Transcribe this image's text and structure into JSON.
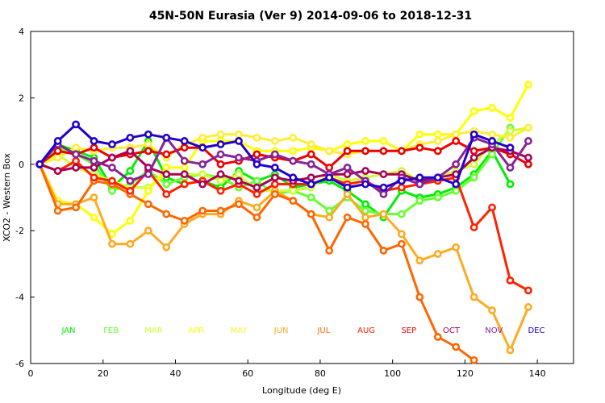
{
  "chart_data": {
    "type": "line",
    "title": "45N-50N Eurasia (Ver 9)   2014-09-06 to 2018-12-31",
    "xlabel": "Longitude (deg E)",
    "ylabel": "XCO2 - Western Box",
    "xlim": [
      0,
      150
    ],
    "ylim": [
      -6,
      4
    ],
    "xticks": [
      "0",
      "20",
      "40",
      "60",
      "80",
      "100",
      "120",
      "140"
    ],
    "yticks": [
      "-6",
      "-4",
      "-2",
      "0",
      "2",
      "4"
    ],
    "series": [
      {
        "name": "JAN",
        "color": "#00ee00",
        "x": [
          2.5,
          7.5,
          12.5,
          17.5,
          22.5,
          27.5,
          32.5,
          37.5,
          42.5,
          47.5,
          52.5,
          57.5,
          62.5,
          67.5,
          72.5,
          77.5,
          82.5,
          87.5,
          92.5,
          97.5,
          102.5,
          107.5,
          112.5,
          117.5,
          122.5,
          127.5,
          132.5
        ],
        "values": [
          0.0,
          0.6,
          0.4,
          0.2,
          -0.7,
          -0.2,
          0.7,
          -0.4,
          -0.6,
          -0.5,
          -0.7,
          -0.2,
          -0.5,
          -0.3,
          -0.7,
          -0.6,
          -0.5,
          -0.8,
          -1.2,
          -1.6,
          -0.8,
          -1.0,
          -0.9,
          -0.7,
          -0.3,
          0.4,
          -0.6
        ]
      },
      {
        "name": "FEB",
        "color": "#66ff33",
        "x": [
          2.5,
          7.5,
          12.5,
          17.5,
          22.5,
          27.5,
          32.5,
          37.5,
          42.5,
          47.5,
          52.5,
          57.5,
          62.5,
          67.5,
          72.5,
          77.5,
          82.5,
          87.5,
          92.5,
          97.5,
          102.5,
          107.5,
          112.5,
          117.5,
          122.5,
          127.5,
          132.5
        ],
        "values": [
          0.0,
          0.5,
          0.3,
          0.0,
          -0.8,
          -0.6,
          -0.2,
          -0.6,
          -0.4,
          -0.3,
          -0.4,
          -0.7,
          -0.5,
          -0.9,
          -0.8,
          -1.0,
          -1.4,
          -1.0,
          -1.4,
          -1.5,
          -1.5,
          -1.1,
          -1.0,
          -0.8,
          -0.4,
          0.3,
          1.1
        ]
      },
      {
        "name": "MAR",
        "color": "#ccff33",
        "x": [
          2.5,
          7.5,
          12.5,
          17.5,
          22.5,
          27.5,
          32.5,
          37.5,
          42.5,
          47.5,
          52.5,
          57.5,
          62.5,
          67.5,
          72.5,
          77.5,
          82.5,
          87.5,
          92.5,
          97.5,
          102.5,
          107.5,
          112.5,
          117.5,
          122.5,
          127.5,
          132.5,
          137.5
        ],
        "values": [
          0.0,
          0.3,
          -0.1,
          -0.3,
          -0.5,
          -0.7,
          -0.7,
          -0.3,
          -0.3,
          -0.3,
          -0.5,
          -0.3,
          -0.8,
          -0.8,
          -0.8,
          -0.7,
          -0.3,
          -0.5,
          -0.4,
          -0.3,
          -0.2,
          -0.5,
          -0.4,
          -0.2,
          0.0,
          0.6,
          1.0,
          1.1
        ]
      },
      {
        "name": "APR",
        "color": "#ffff00",
        "x": [
          2.5,
          7.5,
          12.5,
          17.5,
          22.5,
          27.5,
          32.5,
          37.5,
          42.5,
          47.5,
          52.5,
          57.5,
          62.5,
          67.5,
          72.5,
          77.5,
          82.5,
          87.5,
          92.5,
          97.5,
          102.5,
          107.5,
          112.5,
          117.5,
          122.5,
          127.5,
          132.5,
          137.5
        ],
        "values": [
          0.0,
          -1.1,
          -1.2,
          -1.6,
          -2.1,
          -1.7,
          -0.8,
          -0.1,
          -0.1,
          0.7,
          0.7,
          0.7,
          0.4,
          0.4,
          0.4,
          0.5,
          0.4,
          0.6,
          0.7,
          0.7,
          0.4,
          0.9,
          0.9,
          0.9,
          1.6,
          1.7,
          1.4,
          2.4
        ]
      },
      {
        "name": "MAY",
        "color": "#ffee33",
        "x": [
          2.5,
          7.5,
          12.5,
          17.5,
          22.5,
          27.5,
          32.5,
          37.5,
          42.5,
          47.5,
          52.5,
          57.5,
          62.5,
          67.5,
          72.5,
          77.5,
          82.5,
          87.5,
          92.5,
          97.5,
          102.5,
          107.5,
          112.5,
          117.5,
          122.5,
          127.5,
          132.5,
          137.5
        ],
        "values": [
          0.0,
          0.2,
          0.5,
          0.4,
          0.5,
          0.5,
          0.6,
          0.2,
          0.6,
          0.8,
          0.9,
          0.9,
          0.8,
          0.7,
          0.8,
          0.6,
          0.4,
          0.3,
          0.4,
          0.4,
          0.4,
          0.6,
          0.7,
          0.9,
          1.0,
          0.9,
          0.8,
          1.1
        ]
      },
      {
        "name": "JUN",
        "color": "#ffaa22",
        "x": [
          2.5,
          7.5,
          12.5,
          17.5,
          22.5,
          27.5,
          32.5,
          37.5,
          42.5,
          47.5,
          52.5,
          57.5,
          62.5,
          67.5,
          72.5,
          77.5,
          82.5,
          87.5,
          92.5,
          97.5,
          102.5,
          107.5,
          112.5,
          117.5,
          122.5,
          127.5,
          132.5,
          137.5
        ],
        "values": [
          0.0,
          -1.2,
          -1.2,
          -1.0,
          -2.4,
          -2.4,
          -2.0,
          -2.5,
          -1.8,
          -1.5,
          -1.5,
          -1.1,
          -1.3,
          -0.8,
          -1.1,
          -1.5,
          -1.6,
          -0.9,
          -1.6,
          -1.5,
          -2.1,
          -2.9,
          -2.7,
          -2.5,
          -4.0,
          -4.4,
          -5.6,
          -4.3
        ]
      },
      {
        "name": "JUL",
        "color": "#ff6600",
        "x": [
          2.5,
          7.5,
          12.5,
          17.5,
          22.5,
          27.5,
          32.5,
          37.5,
          42.5,
          47.5,
          52.5,
          57.5,
          62.5,
          67.5,
          72.5,
          77.5,
          82.5,
          87.5,
          92.5,
          97.5,
          102.5,
          107.5,
          112.5,
          117.5,
          122.5
        ],
        "values": [
          0.0,
          -1.4,
          -1.3,
          -0.5,
          -0.6,
          -0.9,
          -1.2,
          -1.5,
          -1.7,
          -1.4,
          -1.4,
          -1.2,
          -1.6,
          -0.9,
          -1.1,
          -1.5,
          -2.6,
          -1.6,
          -1.8,
          -2.6,
          -2.4,
          -4.0,
          -5.2,
          -5.5,
          -5.9
        ]
      },
      {
        "name": "AUG",
        "color": "#ff2200",
        "x": [
          2.5,
          7.5,
          12.5,
          17.5,
          22.5,
          27.5,
          32.5,
          37.5,
          42.5,
          47.5,
          52.5,
          57.5,
          62.5,
          67.5,
          72.5,
          77.5,
          82.5,
          87.5,
          92.5,
          97.5,
          102.5,
          107.5,
          112.5,
          117.5,
          122.5,
          127.5,
          132.5,
          137.5
        ],
        "values": [
          0.0,
          -0.2,
          0.1,
          -0.4,
          -0.5,
          -0.8,
          -0.2,
          -0.9,
          -0.6,
          -0.5,
          -0.8,
          -0.6,
          -0.9,
          -0.6,
          -0.6,
          -0.6,
          -0.4,
          -0.6,
          -0.5,
          -0.8,
          -0.7,
          -0.6,
          -0.5,
          -0.4,
          -1.9,
          -1.3,
          -3.5,
          -3.8
        ]
      },
      {
        "name": "SEP",
        "color": "#ee0000",
        "x": [
          2.5,
          7.5,
          12.5,
          17.5,
          22.5,
          27.5,
          32.5,
          37.5,
          42.5,
          47.5,
          52.5,
          57.5,
          62.5,
          67.5,
          72.5,
          77.5,
          82.5,
          87.5,
          92.5,
          97.5,
          102.5,
          107.5,
          112.5,
          117.5,
          122.5,
          127.5,
          132.5,
          137.5
        ],
        "values": [
          0.0,
          0.4,
          0.3,
          0.5,
          0.2,
          0.3,
          0.4,
          0.3,
          0.5,
          0.5,
          0.0,
          0.1,
          0.3,
          0.2,
          0.1,
          0.3,
          -0.1,
          0.4,
          0.4,
          0.4,
          0.4,
          0.5,
          0.4,
          0.7,
          0.4,
          0.5,
          0.3,
          0.0
        ]
      },
      {
        "name": "OCT",
        "color": "#aa0055",
        "x": [
          2.5,
          7.5,
          12.5,
          17.5,
          22.5,
          27.5,
          32.5,
          37.5,
          42.5,
          47.5,
          52.5,
          57.5,
          62.5,
          67.5,
          72.5,
          77.5,
          82.5,
          87.5,
          92.5,
          97.5,
          102.5,
          107.5,
          112.5,
          117.5,
          122.5,
          127.5,
          132.5,
          137.5
        ],
        "values": [
          0.0,
          -0.2,
          -0.1,
          -0.1,
          0.2,
          0.4,
          -0.1,
          -0.3,
          -0.3,
          -0.6,
          -0.3,
          -0.5,
          -0.7,
          -0.4,
          -0.5,
          -0.4,
          -0.3,
          -0.3,
          -0.2,
          -0.3,
          -0.3,
          -0.5,
          -0.4,
          -0.3,
          0.2,
          0.5,
          0.4,
          0.2
        ]
      },
      {
        "name": "NOV",
        "color": "#882299",
        "x": [
          2.5,
          7.5,
          12.5,
          17.5,
          22.5,
          27.5,
          32.5,
          37.5,
          42.5,
          47.5,
          52.5,
          57.5,
          62.5,
          67.5,
          72.5,
          77.5,
          82.5,
          87.5,
          92.5,
          97.5,
          102.5,
          107.5,
          112.5,
          117.5,
          122.5,
          127.5,
          132.5,
          137.5
        ],
        "values": [
          0.0,
          0.6,
          0.3,
          0.1,
          -0.1,
          -0.5,
          -0.3,
          0.8,
          0.1,
          0.0,
          0.3,
          0.2,
          0.1,
          0.3,
          0.1,
          0.0,
          -0.3,
          -0.1,
          -0.5,
          -0.9,
          -0.4,
          -0.6,
          -0.4,
          0.0,
          0.8,
          0.6,
          -0.1,
          0.7
        ]
      },
      {
        "name": "DEC",
        "color": "#2200cc",
        "x": [
          2.5,
          7.5,
          12.5,
          17.5,
          22.5,
          27.5,
          32.5,
          37.5,
          42.5,
          47.5,
          52.5,
          57.5,
          62.5,
          67.5,
          72.5,
          77.5,
          82.5,
          87.5,
          92.5,
          97.5,
          102.5,
          107.5,
          112.5,
          117.5,
          122.5,
          127.5,
          132.5
        ],
        "values": [
          0.0,
          0.7,
          1.2,
          0.7,
          0.6,
          0.8,
          0.9,
          0.8,
          0.7,
          0.5,
          0.6,
          0.7,
          0.0,
          -0.1,
          -0.4,
          -0.6,
          -0.4,
          -0.7,
          -0.6,
          -0.7,
          -0.5,
          -0.4,
          -0.4,
          -0.6,
          0.9,
          0.7,
          0.5
        ]
      }
    ]
  }
}
